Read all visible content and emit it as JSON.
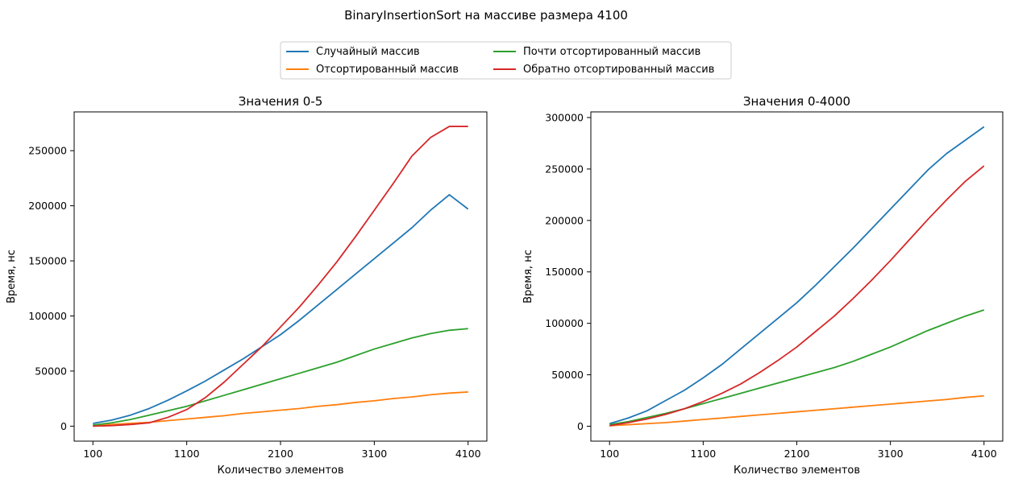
{
  "suptitle": "BinaryInsertionSort на массиве размера 4100",
  "legend": {
    "placement": "top-center",
    "columns": 2,
    "entries": [
      {
        "label": "Случайный массив",
        "color": "#1f77b4"
      },
      {
        "label": "Отсортированный массив",
        "color": "#ff7f0e"
      },
      {
        "label": "Почти отсортированный массив",
        "color": "#2ca02c"
      },
      {
        "label": "Обратно отсортированный массив",
        "color": "#d62728"
      }
    ]
  },
  "chart_data": [
    {
      "type": "line",
      "title": "Значения 0-5",
      "xlabel": "Количество элементов",
      "ylabel": "Время, нс",
      "xlim": [
        -100,
        4300
      ],
      "ylim": [
        -13600,
        285200
      ],
      "xticks": [
        100,
        1100,
        2100,
        3100,
        4100
      ],
      "xtick_labels": [
        "100",
        "1100",
        "2100",
        "3100",
        "4100"
      ],
      "yticks": [
        0,
        50000,
        100000,
        150000,
        200000,
        250000
      ],
      "ytick_labels": [
        "0",
        "50000",
        "100000",
        "150000",
        "200000",
        "250000"
      ],
      "grid": false,
      "x": [
        100,
        300,
        500,
        700,
        900,
        1100,
        1300,
        1500,
        1700,
        1900,
        2100,
        2300,
        2500,
        2700,
        2900,
        3100,
        3300,
        3500,
        3700,
        3900,
        4100
      ],
      "series": [
        {
          "name": "Случайный массив",
          "color": "#1f77b4",
          "values": [
            2500,
            5500,
            10000,
            16000,
            23500,
            32000,
            41000,
            51000,
            61000,
            72000,
            83000,
            96000,
            110000,
            124000,
            138000,
            152000,
            166000,
            180000,
            196000,
            210000,
            197000
          ]
        },
        {
          "name": "Отсортированный массив",
          "color": "#ff7f0e",
          "values": [
            500,
            1500,
            2500,
            3500,
            5000,
            6500,
            8000,
            9500,
            11500,
            13000,
            14500,
            16000,
            18000,
            19500,
            21500,
            23000,
            25000,
            26500,
            28500,
            30000,
            31000
          ]
        },
        {
          "name": "Почти отсортированный массив",
          "color": "#2ca02c",
          "values": [
            1000,
            3000,
            6000,
            10000,
            14000,
            18000,
            23000,
            28000,
            33000,
            38000,
            43000,
            48000,
            53000,
            58000,
            64000,
            70000,
            75000,
            80000,
            84000,
            87000,
            88500
          ]
        },
        {
          "name": "Обратно отсортированный массив",
          "color": "#d62728",
          "values": [
            0,
            500,
            1500,
            3000,
            8000,
            15000,
            26000,
            40000,
            56000,
            72000,
            90000,
            108000,
            128000,
            149000,
            172000,
            196000,
            220000,
            245000,
            262000,
            272000,
            272000
          ]
        }
      ]
    },
    {
      "type": "line",
      "title": "Значения 0-4000",
      "xlabel": "Количество элементов",
      "ylabel": "Время, нс",
      "xlim": [
        -100,
        4300
      ],
      "ylim": [
        -14500,
        305500
      ],
      "xticks": [
        100,
        1100,
        2100,
        3100,
        4100
      ],
      "xtick_labels": [
        "100",
        "1100",
        "2100",
        "3100",
        "4100"
      ],
      "yticks": [
        0,
        50000,
        100000,
        150000,
        200000,
        250000,
        300000
      ],
      "ytick_labels": [
        "0",
        "50000",
        "100000",
        "150000",
        "200000",
        "250000",
        "300000"
      ],
      "grid": false,
      "x": [
        100,
        300,
        500,
        700,
        900,
        1100,
        1300,
        1500,
        1700,
        1900,
        2100,
        2300,
        2500,
        2700,
        2900,
        3100,
        3300,
        3500,
        3700,
        3900,
        4100
      ],
      "series": [
        {
          "name": "Случайный массив",
          "color": "#1f77b4",
          "values": [
            2500,
            8000,
            15000,
            25000,
            35000,
            47000,
            60000,
            75000,
            90000,
            105000,
            120000,
            137000,
            155000,
            173000,
            192000,
            211000,
            230000,
            249000,
            265000,
            278000,
            291000
          ]
        },
        {
          "name": "Отсортированный массив",
          "color": "#ff7f0e",
          "values": [
            500,
            1500,
            2500,
            3500,
            5000,
            6500,
            8000,
            9500,
            11000,
            12500,
            14000,
            15500,
            17000,
            18500,
            20000,
            21500,
            23000,
            24500,
            26000,
            28000,
            29500
          ]
        },
        {
          "name": "Почти отсортированный массив",
          "color": "#2ca02c",
          "values": [
            1500,
            4500,
            8500,
            12500,
            17000,
            22000,
            27000,
            32000,
            37000,
            42000,
            47000,
            52000,
            57000,
            63000,
            70000,
            77000,
            85000,
            93000,
            100000,
            107000,
            113000
          ]
        },
        {
          "name": "Обратно отсортированный массив",
          "color": "#d62728",
          "values": [
            500,
            3500,
            7000,
            11500,
            17000,
            24000,
            32000,
            41000,
            52000,
            64000,
            77000,
            92000,
            107000,
            124000,
            142000,
            161000,
            181000,
            201000,
            220000,
            238000,
            253000
          ]
        }
      ]
    }
  ]
}
